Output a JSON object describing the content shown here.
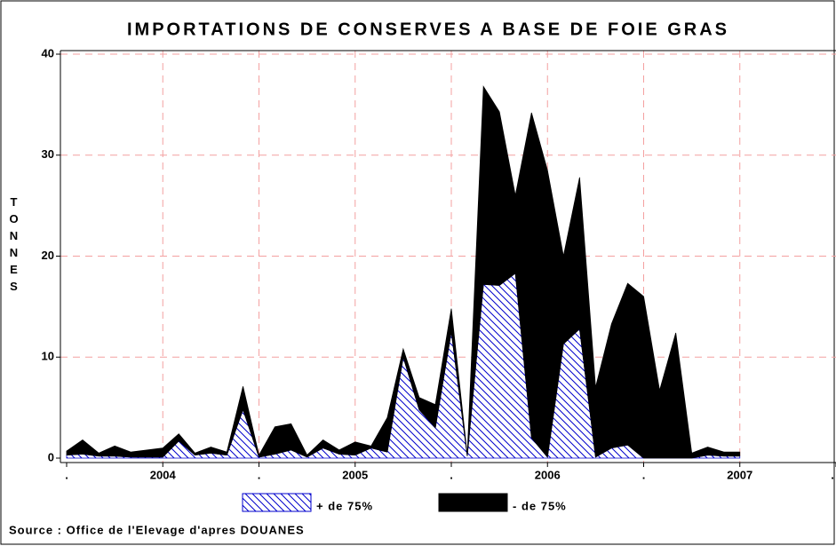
{
  "chart_data": {
    "type": "stacked_area",
    "title": "IMPORTATIONS DE CONSERVES A BASE DE FOIE GRAS",
    "y_label": "TONNES",
    "source": "Source : Office de l'Elevage d'apres DOUANES",
    "x": [
      2003.5,
      2003.583,
      2003.667,
      2003.75,
      2003.833,
      2003.917,
      2004,
      2004.083,
      2004.167,
      2004.25,
      2004.333,
      2004.417,
      2004.5,
      2004.583,
      2004.667,
      2004.75,
      2004.833,
      2004.917,
      2005,
      2005.083,
      2005.167,
      2005.25,
      2005.333,
      2005.417,
      2005.5,
      2005.583,
      2005.667,
      2005.75,
      2005.833,
      2005.917,
      2006,
      2006.083,
      2006.167,
      2006.25,
      2006.333,
      2006.417,
      2006.5,
      2006.583,
      2006.667,
      2006.75,
      2006.833,
      2006.917,
      2007
    ],
    "series": [
      {
        "name": "+ de 75%",
        "color": "#0000cc",
        "pattern": "hatch",
        "values": [
          0.3,
          0.4,
          0.2,
          0.2,
          0.1,
          0.1,
          0.1,
          1.7,
          0.3,
          0.5,
          0.3,
          4.8,
          0.1,
          0.4,
          0.8,
          0.1,
          1.0,
          0.4,
          0.3,
          1.0,
          0.6,
          10.0,
          4.8,
          3.0,
          12.5,
          0.2,
          17.2,
          17.1,
          18.3,
          2.0,
          0.1,
          11.3,
          12.8,
          0.1,
          1.0,
          1.3,
          0,
          0,
          0,
          0,
          0.3,
          0.2,
          0.2
        ]
      },
      {
        "name": "- de 75%",
        "color": "#000000",
        "pattern": "solid",
        "values": [
          0.4,
          1.4,
          0.3,
          1.0,
          0.5,
          0.7,
          0.9,
          0.7,
          0.2,
          0.6,
          0.3,
          2.3,
          0.2,
          2.7,
          2.6,
          0.2,
          0.8,
          0.4,
          1.3,
          0.2,
          3.4,
          0.8,
          1.2,
          2.3,
          2.3,
          0.1,
          19.6,
          17.2,
          7.7,
          32.2,
          28.4,
          8.7,
          15.0,
          6.9,
          12.3,
          16.0,
          16.0,
          6.7,
          12.4,
          0.5,
          0.8,
          0.4,
          0.4
        ]
      }
    ],
    "xlim": [
      2003.5,
      2007.5
    ],
    "xticks": [
      {
        "value": 2003.5,
        "label": "."
      },
      2004,
      {
        "value": 2004.5,
        "label": "."
      },
      2005,
      {
        "value": 2005.5,
        "label": "."
      },
      2006,
      {
        "value": 2006.5,
        "label": "."
      },
      2007,
      {
        "value": 2007.5,
        "label": "."
      }
    ],
    "ylim": [
      0,
      40
    ],
    "yticks": [
      0,
      10,
      20,
      30,
      40
    ],
    "grid": true
  }
}
